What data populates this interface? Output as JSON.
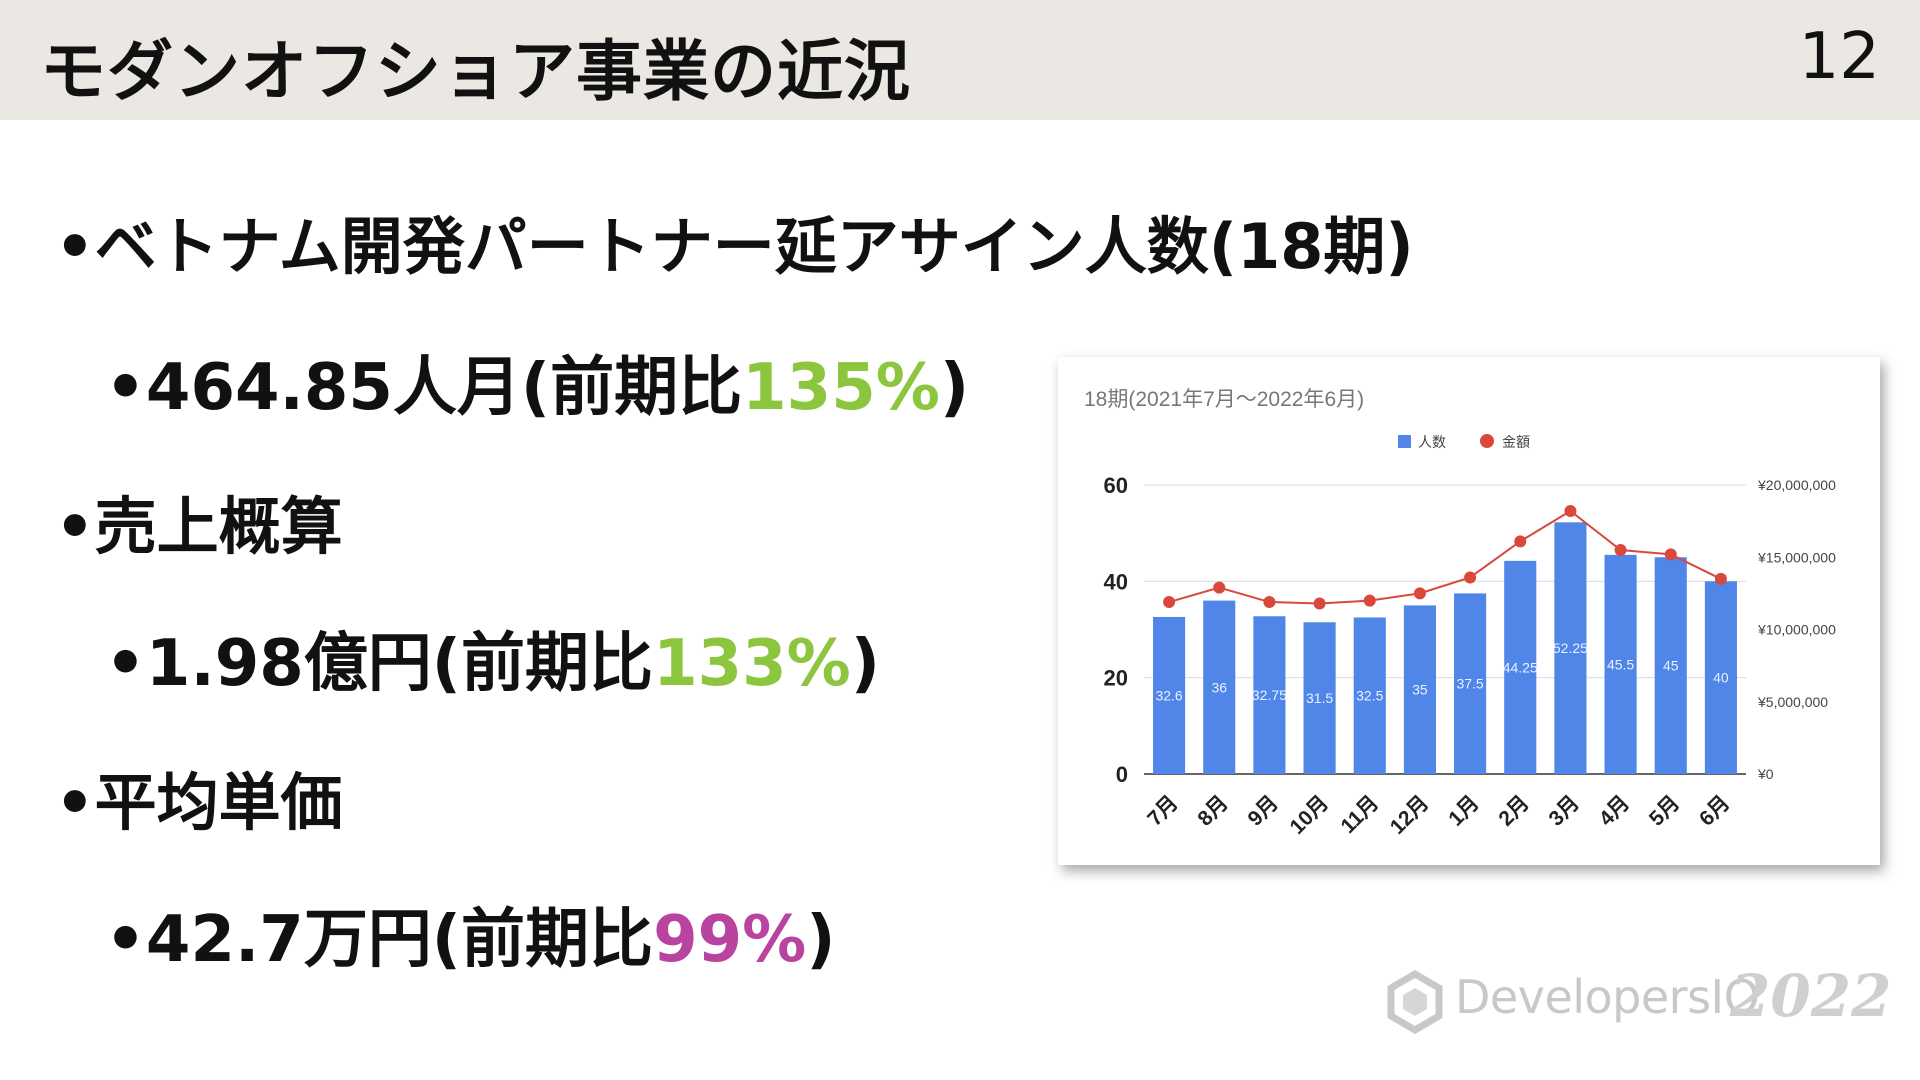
{
  "header": {
    "title": "モダンオフショア事業の近況",
    "page_number": "12"
  },
  "bullets": [
    {
      "prefix": "•ベトナム開発パートナー延アサイン人数(18期)",
      "highlight": "",
      "suffix": ""
    },
    {
      "prefix": "•464.85人月(前期比",
      "highlight": "135%",
      "suffix": ")"
    },
    {
      "prefix": "•売上概算",
      "highlight": "",
      "suffix": ""
    },
    {
      "prefix": "•1.98億円(前期比",
      "highlight": "133%",
      "suffix": ")"
    },
    {
      "prefix": "•平均単価",
      "highlight": "",
      "suffix": ""
    },
    {
      "prefix": "•42.7万円(前期比",
      "highlight": "99%",
      "suffix": ")"
    }
  ],
  "colors": {
    "header_bg": "#ebe8e3",
    "increase_highlight": "#8cc63f",
    "decrease_highlight": "#b8449f",
    "bar": "#4f86e8",
    "line": "#d9483b"
  },
  "chart_data": {
    "type": "bar",
    "title": "18期(2021年7月～2022年6月)",
    "categories": [
      "7月",
      "8月",
      "9月",
      "10月",
      "11月",
      "12月",
      "1月",
      "2月",
      "3月",
      "4月",
      "5月",
      "6月"
    ],
    "series": [
      {
        "name": "人数",
        "type": "bar",
        "axis": "left",
        "values": [
          32.6,
          36,
          32.75,
          31.5,
          32.5,
          35,
          37.5,
          44.25,
          52.25,
          45.5,
          45,
          40
        ],
        "labels": [
          "32.6",
          "36",
          "32.75",
          "31.5",
          "32.5",
          "35",
          "37.5",
          "44.25",
          "52.25",
          "45.5",
          "45",
          "40"
        ]
      },
      {
        "name": "金額",
        "type": "line",
        "axis": "right",
        "values": [
          11900000,
          12900000,
          11900000,
          11800000,
          12000000,
          12500000,
          13600000,
          16100000,
          18200000,
          15500000,
          15200000,
          13500000
        ]
      }
    ],
    "y_left": {
      "range": [
        0,
        60
      ],
      "ticks": [
        "0",
        "20",
        "40",
        "60"
      ]
    },
    "y_right": {
      "range": [
        0,
        20000000
      ],
      "ticks": [
        "¥0",
        "¥5,000,000",
        "¥10,000,000",
        "¥15,000,000",
        "¥20,000,000"
      ]
    },
    "legend_position": "top",
    "grid": true
  }
}
